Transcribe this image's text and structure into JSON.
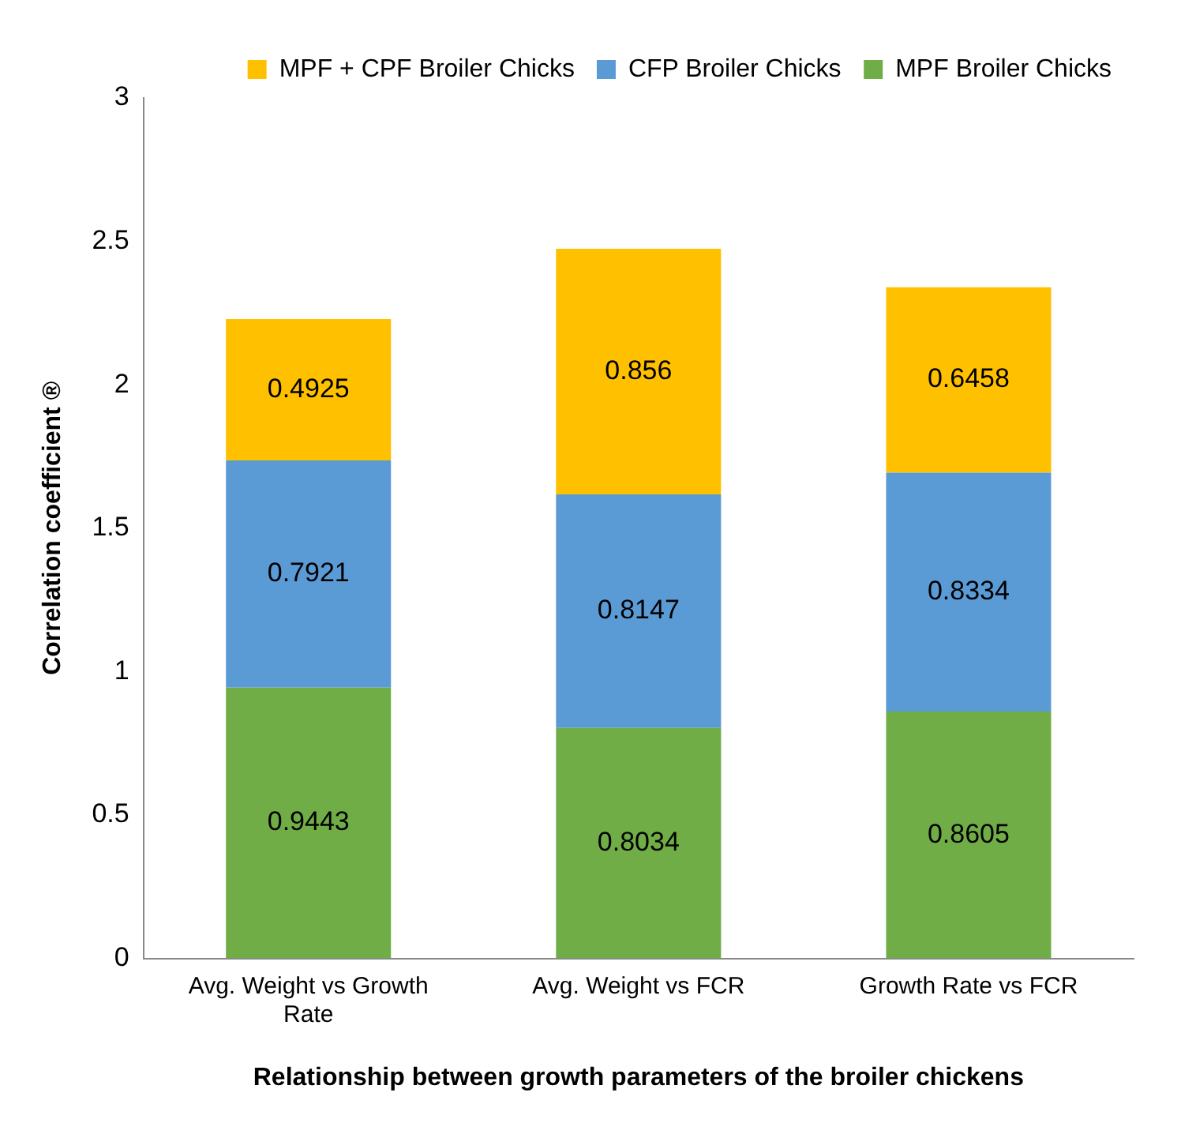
{
  "chart_data": {
    "type": "bar",
    "stacked": true,
    "xlabel": "Relationship between growth parameters of the broiler chickens",
    "ylabel": "Correlation coefficient ®",
    "categories": [
      "Avg. Weight vs Growth Rate",
      "Avg. Weight vs FCR",
      "Growth Rate vs FCR"
    ],
    "series": [
      {
        "name": "MPF Broiler Chicks",
        "color": "#70ad47",
        "values": [
          0.9443,
          0.8034,
          0.8605
        ]
      },
      {
        "name": "CFP Broiler Chicks",
        "color": "#5b9bd5",
        "values": [
          0.7921,
          0.8147,
          0.8334
        ]
      },
      {
        "name": "MPF + CPF Broiler Chicks",
        "color": "#ffc000",
        "values": [
          0.4925,
          0.856,
          0.6458
        ]
      }
    ],
    "ylim": [
      0,
      3
    ],
    "yticks": [
      0,
      0.5,
      1,
      1.5,
      2,
      2.5,
      3
    ],
    "grid": false,
    "legend": "top right",
    "data_labels": true
  }
}
